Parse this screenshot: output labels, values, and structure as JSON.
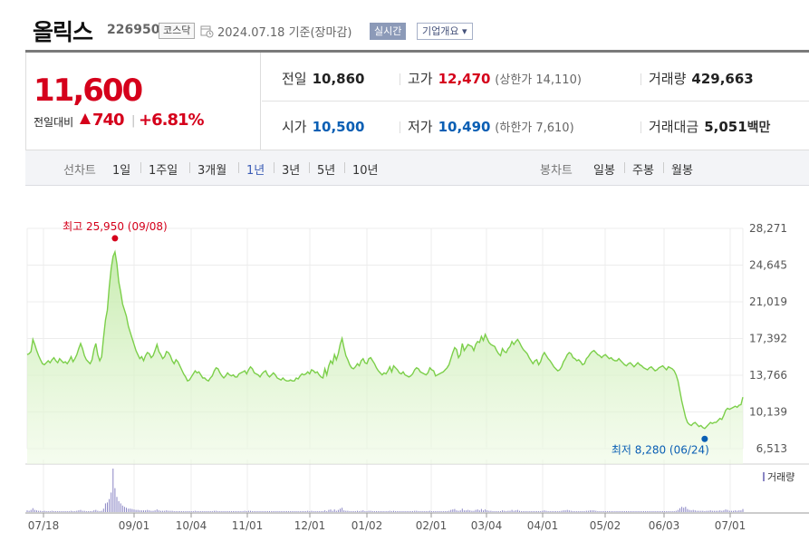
{
  "header": {
    "stock_name": "올릭스",
    "stock_code": "226950",
    "market": "코스닥",
    "date_text": "2024.07.18 기준(장마감)",
    "realtime_label": "실시간",
    "company_label": "기업개요 ▾"
  },
  "quote": {
    "current_price": "11,600",
    "change_label": "전일대비",
    "change_value": "740",
    "change_sep": "|",
    "change_rate": "+6.81%",
    "prev_close": {
      "label": "전일",
      "value": "10,860"
    },
    "open": {
      "label": "시가",
      "value": "10,500"
    },
    "high": {
      "label": "고가",
      "value": "12,470",
      "limit": "(상한가 14,110)"
    },
    "low": {
      "label": "저가",
      "value": "10,490",
      "limit": "(하한가 7,610)"
    },
    "volume": {
      "label": "거래량",
      "value": "429,663"
    },
    "amount": {
      "label": "거래대금",
      "value": "5,051",
      "unit": "백만"
    }
  },
  "period_bar": {
    "line_label": "선차트",
    "line_periods": [
      "1일",
      "1주일",
      "3개월",
      "1년",
      "3년",
      "5년",
      "10년"
    ],
    "active_period": "1년",
    "candle_label": "봉차트",
    "candle_periods": [
      "일봉",
      "주봉",
      "월봉"
    ]
  },
  "colors": {
    "up": "#d5001b",
    "down": "#0a5fb4",
    "line": "#7ccf4a",
    "volume": "#8a86c4"
  },
  "chart_data": {
    "type": "area",
    "y_ticks": [
      "28,271",
      "24,645",
      "21,019",
      "17,392",
      "13,766",
      "10,139",
      "6,513"
    ],
    "x_ticks": [
      "07/18",
      "09/01",
      "10/04",
      "11/01",
      "12/01",
      "01/02",
      "02/01",
      "03/04",
      "04/01",
      "05/02",
      "06/03",
      "07/01"
    ],
    "ylim": [
      6513,
      28271
    ],
    "grid": true,
    "max_annotation": {
      "label": "최고 25,950 (09/08)",
      "value": 25950
    },
    "min_annotation": {
      "label": "최저 8,280 (06/24)",
      "value": 8280
    },
    "volume_legend": "거래량",
    "prices": [
      15800,
      15900,
      16100,
      17300,
      16800,
      16200,
      15700,
      15300,
      14900,
      14800,
      15000,
      15200,
      15000,
      15300,
      15500,
      15200,
      15000,
      15400,
      15200,
      15000,
      15100,
      14900,
      15200,
      15600,
      15100,
      15400,
      15800,
      16400,
      16900,
      16400,
      15700,
      15300,
      15100,
      14900,
      15300,
      16300,
      16900,
      15800,
      15200,
      15600,
      17500,
      19200,
      20200,
      22500,
      24300,
      25500,
      25950,
      24800,
      23000,
      22000,
      20800,
      20200,
      19600,
      18600,
      18000,
      17400,
      16800,
      16200,
      15800,
      15400,
      15600,
      15200,
      15700,
      16000,
      15900,
      15500,
      15700,
      16200,
      16800,
      16100,
      15800,
      15400,
      15600,
      16100,
      16000,
      15700,
      15200,
      14900,
      15300,
      15100,
      14700,
      14300,
      13900,
      13600,
      13200,
      13300,
      13600,
      13900,
      14200,
      14000,
      14100,
      13800,
      13500,
      13500,
      13300,
      13200,
      13500,
      13700,
      14200,
      14500,
      14400,
      14000,
      13700,
      13500,
      13700,
      14000,
      13800,
      13700,
      13800,
      13600,
      13600,
      13900,
      14000,
      14100,
      14200,
      13900,
      14300,
      14600,
      14400,
      14000,
      13900,
      13800,
      13600,
      13900,
      14100,
      14200,
      13800,
      13600,
      13800,
      14000,
      13800,
      13500,
      13400,
      13300,
      13500,
      13300,
      13200,
      13200,
      13300,
      13200,
      13200,
      13500,
      13400,
      13700,
      13900,
      13800,
      13900,
      14100,
      13900,
      14300,
      14200,
      14000,
      14100,
      13800,
      13600,
      13500,
      14400,
      13800,
      14700,
      15200,
      14900,
      15800,
      15300,
      15900,
      16800,
      17400,
      16500,
      15700,
      15300,
      14800,
      14500,
      14400,
      14600,
      14900,
      14700,
      15200,
      15400,
      15000,
      14900,
      15400,
      15500,
      15200,
      14900,
      14500,
      14200,
      14000,
      13800,
      14000,
      13900,
      14200,
      14600,
      14100,
      14700,
      14500,
      14300,
      14000,
      13900,
      14100,
      13800,
      13700,
      13600,
      13700,
      13900,
      14300,
      14500,
      14400,
      14100,
      14000,
      13900,
      13800,
      14000,
      14500,
      14300,
      14200,
      13700,
      13800,
      13900,
      14000,
      14100,
      14300,
      14500,
      14800,
      15400,
      16000,
      16500,
      16300,
      15500,
      15800,
      16900,
      16200,
      16500,
      16800,
      16700,
      16600,
      16200,
      16800,
      17100,
      17000,
      17600,
      17200,
      17800,
      17400,
      17000,
      16800,
      16700,
      16600,
      16200,
      15900,
      15700,
      16400,
      16100,
      16000,
      16400,
      16600,
      17100,
      16800,
      17100,
      17300,
      17000,
      16600,
      16300,
      16100,
      15900,
      15500,
      15200,
      14900,
      15200,
      15300,
      14800,
      15100,
      15700,
      16000,
      15700,
      15400,
      15200,
      14900,
      14600,
      14400,
      14200,
      14300,
      14600,
      15100,
      15400,
      15800,
      16000,
      15900,
      15500,
      15400,
      15200,
      15300,
      15100,
      14800,
      14900,
      15400,
      15600,
      15900,
      16100,
      16200,
      16000,
      15800,
      15700,
      15500,
      15700,
      15800,
      15600,
      15400,
      15500,
      15300,
      15200,
      15200,
      15400,
      15200,
      15000,
      14800,
      14700,
      14900,
      15000,
      14800,
      14600,
      14800,
      15000,
      14800,
      14700,
      14500,
      14400,
      14300,
      14500,
      14600,
      14400,
      14200,
      14300,
      14500,
      14600,
      14700,
      14500,
      14300,
      14600,
      14500,
      14400,
      14200,
      13800,
      13200,
      12200,
      11200,
      10400,
      9600,
      9100,
      8900,
      8800,
      9000,
      9100,
      8900,
      8700,
      8800,
      8600,
      8500,
      8700,
      8900,
      9100,
      9000,
      9100,
      9100,
      9300,
      9500,
      9400,
      9800,
      10300,
      10500,
      10400,
      10500,
      10600,
      10700,
      10600,
      10800,
      10860,
      11600
    ],
    "volume": [
      0.04,
      0.03,
      0.05,
      0.09,
      0.05,
      0.04,
      0.03,
      0.03,
      0.02,
      0.03,
      0.02,
      0.02,
      0.02,
      0.03,
      0.02,
      0.02,
      0.02,
      0.02,
      0.02,
      0.02,
      0.02,
      0.02,
      0.02,
      0.03,
      0.02,
      0.02,
      0.03,
      0.04,
      0.05,
      0.03,
      0.03,
      0.02,
      0.02,
      0.02,
      0.02,
      0.04,
      0.05,
      0.03,
      0.02,
      0.03,
      0.08,
      0.2,
      0.22,
      0.3,
      0.45,
      1.0,
      0.55,
      0.35,
      0.25,
      0.2,
      0.15,
      0.12,
      0.1,
      0.08,
      0.08,
      0.07,
      0.06,
      0.05,
      0.05,
      0.04,
      0.04,
      0.04,
      0.04,
      0.05,
      0.04,
      0.03,
      0.03,
      0.04,
      0.06,
      0.04,
      0.03,
      0.03,
      0.03,
      0.04,
      0.03,
      0.03,
      0.03,
      0.02,
      0.02,
      0.02,
      0.02,
      0.02,
      0.02,
      0.02,
      0.02,
      0.02,
      0.02,
      0.02,
      0.03,
      0.02,
      0.02,
      0.02,
      0.02,
      0.02,
      0.02,
      0.02,
      0.02,
      0.02,
      0.03,
      0.03,
      0.02,
      0.02,
      0.02,
      0.02,
      0.02,
      0.02,
      0.02,
      0.02,
      0.02,
      0.02,
      0.02,
      0.02,
      0.02,
      0.02,
      0.03,
      0.02,
      0.03,
      0.03,
      0.02,
      0.02,
      0.02,
      0.02,
      0.02,
      0.02,
      0.02,
      0.02,
      0.02,
      0.02,
      0.02,
      0.02,
      0.02,
      0.02,
      0.02,
      0.02,
      0.02,
      0.02,
      0.02,
      0.02,
      0.02,
      0.02,
      0.02,
      0.02,
      0.02,
      0.02,
      0.02,
      0.02,
      0.02,
      0.03,
      0.02,
      0.03,
      0.02,
      0.02,
      0.02,
      0.02,
      0.02,
      0.02,
      0.04,
      0.02,
      0.05,
      0.06,
      0.03,
      0.06,
      0.03,
      0.05,
      0.08,
      0.1,
      0.04,
      0.03,
      0.03,
      0.02,
      0.02,
      0.02,
      0.02,
      0.03,
      0.02,
      0.03,
      0.04,
      0.02,
      0.02,
      0.03,
      0.03,
      0.02,
      0.02,
      0.02,
      0.02,
      0.02,
      0.02,
      0.02,
      0.02,
      0.02,
      0.03,
      0.02,
      0.03,
      0.02,
      0.02,
      0.02,
      0.02,
      0.02,
      0.02,
      0.02,
      0.02,
      0.02,
      0.02,
      0.03,
      0.03,
      0.02,
      0.02,
      0.02,
      0.02,
      0.02,
      0.02,
      0.03,
      0.02,
      0.02,
      0.02,
      0.02,
      0.02,
      0.02,
      0.02,
      0.02,
      0.02,
      0.03,
      0.05,
      0.06,
      0.07,
      0.04,
      0.03,
      0.04,
      0.08,
      0.04,
      0.04,
      0.05,
      0.04,
      0.03,
      0.03,
      0.05,
      0.06,
      0.04,
      0.07,
      0.04,
      0.06,
      0.04,
      0.03,
      0.03,
      0.02,
      0.02,
      0.02,
      0.02,
      0.02,
      0.04,
      0.03,
      0.02,
      0.03,
      0.03,
      0.05,
      0.03,
      0.04,
      0.05,
      0.03,
      0.02,
      0.02,
      0.02,
      0.02,
      0.02,
      0.02,
      0.02,
      0.02,
      0.02,
      0.02,
      0.02,
      0.03,
      0.04,
      0.03,
      0.02,
      0.02,
      0.02,
      0.02,
      0.02,
      0.02,
      0.02,
      0.03,
      0.04,
      0.04,
      0.05,
      0.04,
      0.03,
      0.02,
      0.02,
      0.02,
      0.02,
      0.02,
      0.02,
      0.02,
      0.03,
      0.03,
      0.04,
      0.04,
      0.04,
      0.03,
      0.02,
      0.02,
      0.02,
      0.02,
      0.02,
      0.02,
      0.02,
      0.02,
      0.02,
      0.02,
      0.02,
      0.02,
      0.02,
      0.02,
      0.02,
      0.02,
      0.02,
      0.02,
      0.02,
      0.02,
      0.02,
      0.02,
      0.02,
      0.02,
      0.02,
      0.02,
      0.02,
      0.02,
      0.02,
      0.02,
      0.02,
      0.02,
      0.02,
      0.02,
      0.02,
      0.02,
      0.02,
      0.02,
      0.02,
      0.02,
      0.02,
      0.03,
      0.05,
      0.09,
      0.12,
      0.1,
      0.12,
      0.07,
      0.05,
      0.04,
      0.05,
      0.04,
      0.03,
      0.03,
      0.03,
      0.03,
      0.02,
      0.03,
      0.03,
      0.04,
      0.03,
      0.03,
      0.03,
      0.03,
      0.04,
      0.03,
      0.04,
      0.06,
      0.05,
      0.03,
      0.03,
      0.03,
      0.04,
      0.03,
      0.04,
      0.04,
      0.07
    ]
  }
}
